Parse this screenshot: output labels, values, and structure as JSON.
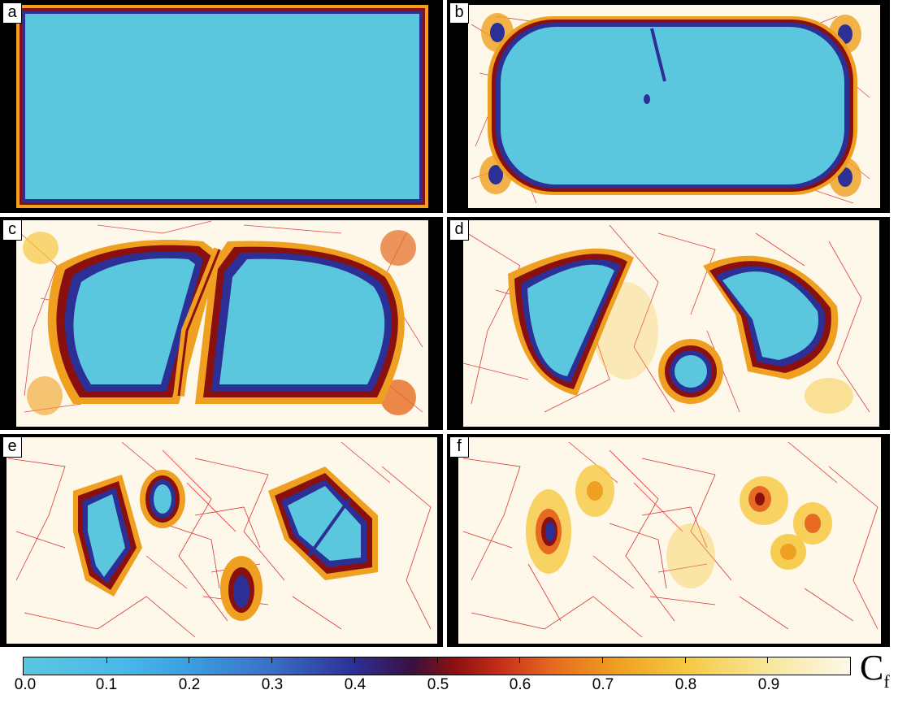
{
  "panels": [
    {
      "label": "a"
    },
    {
      "label": "b"
    },
    {
      "label": "c"
    },
    {
      "label": "d"
    },
    {
      "label": "e"
    },
    {
      "label": "f"
    }
  ],
  "colorbar": {
    "title_main": "C",
    "title_sub": "f",
    "tick_labels": [
      "0.0",
      "0.1",
      "0.2",
      "0.3",
      "0.4",
      "0.5",
      "0.6",
      "0.7",
      "0.8",
      "0.9"
    ],
    "range": [
      0.0,
      1.0
    ],
    "colors": {
      "low": "#5ac7df",
      "mid_blue": "#2c2f96",
      "mid_red": "#8a1010",
      "orange": "#e66a20",
      "yellow": "#f6c840",
      "high": "#fdf8ea",
      "crack": "#d81e1e"
    }
  }
}
